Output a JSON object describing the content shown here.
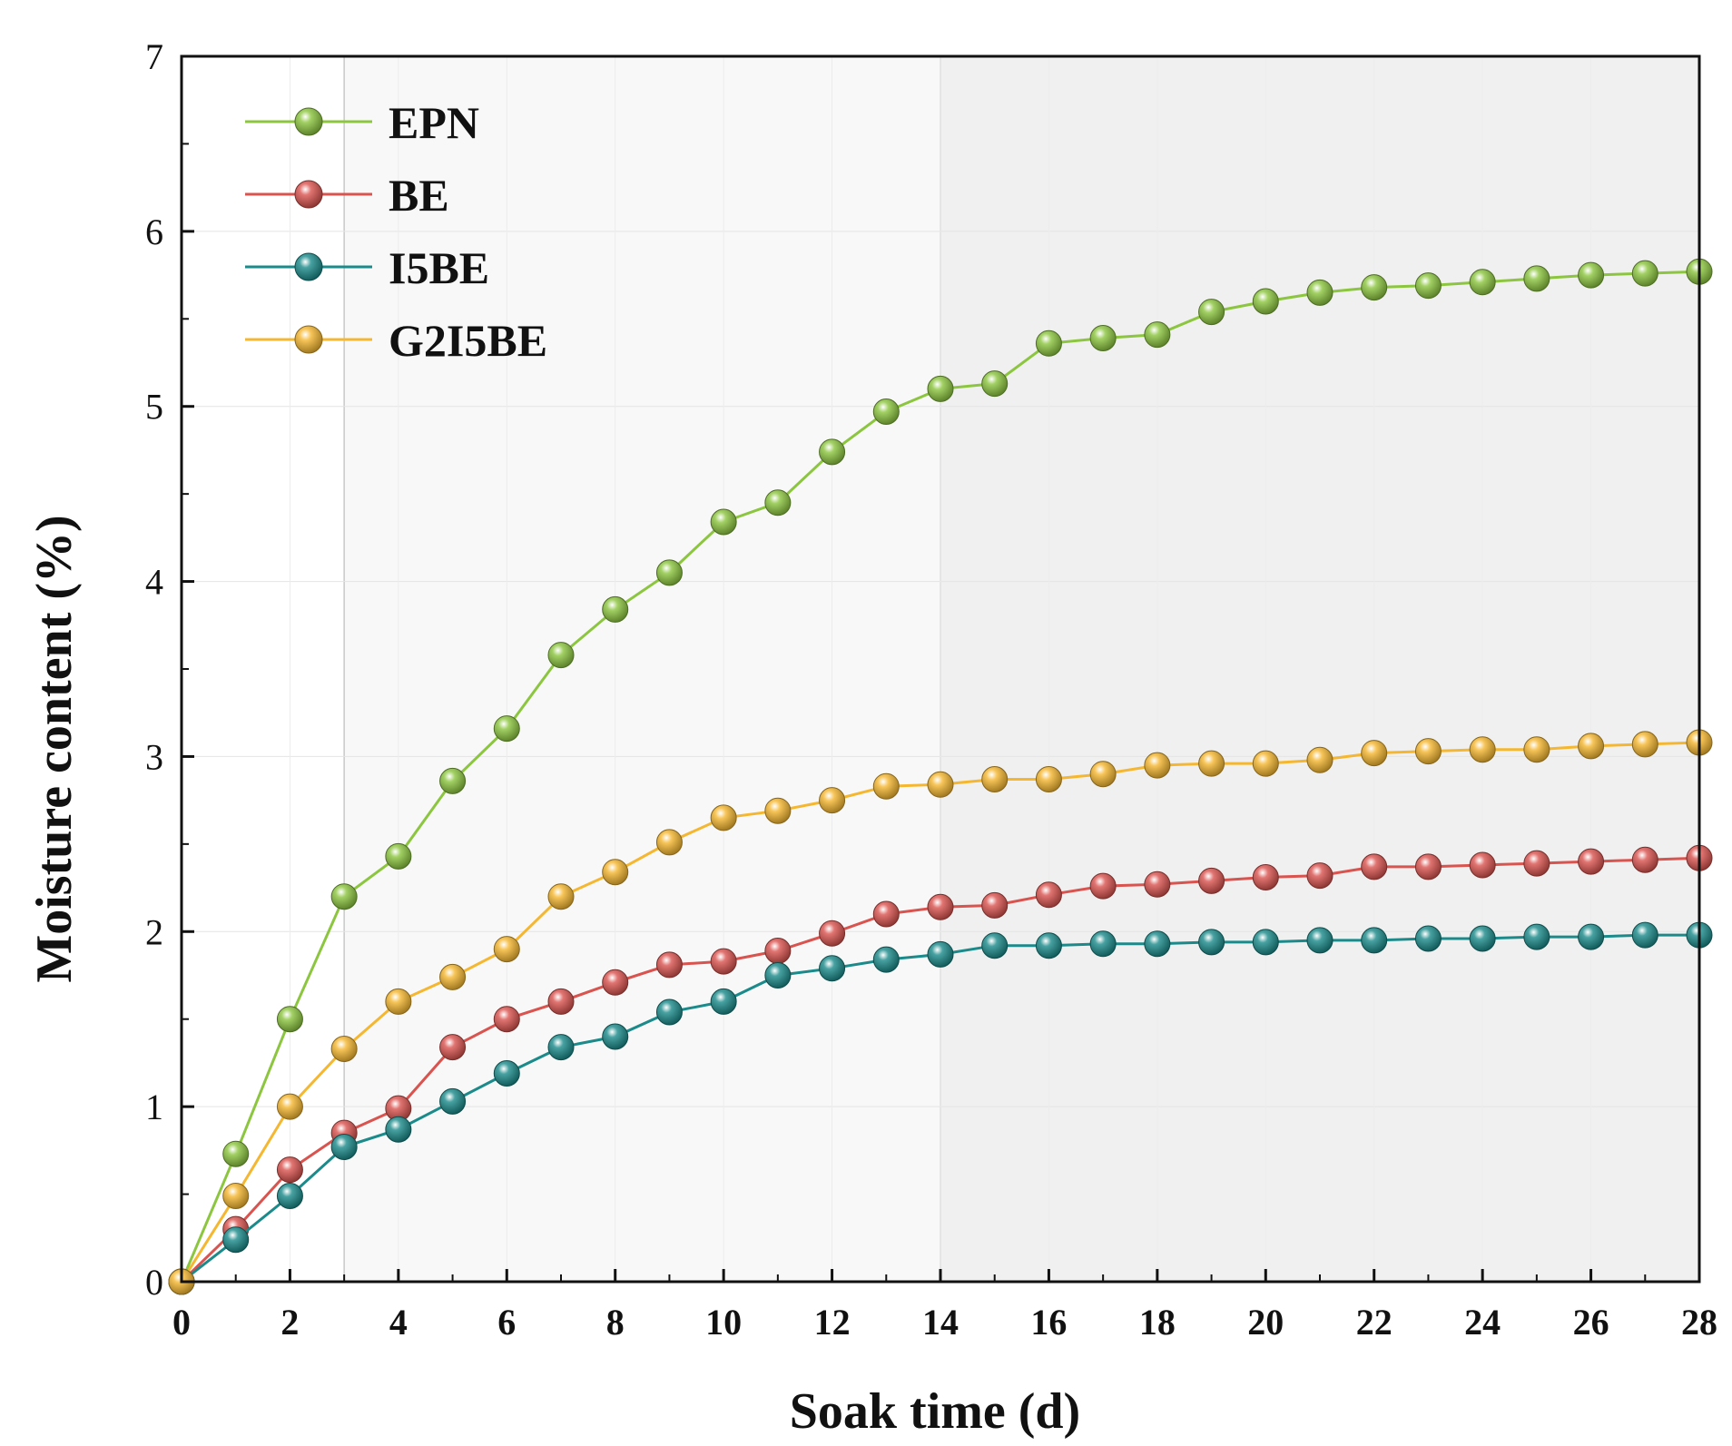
{
  "chart_data": {
    "type": "line",
    "title": "",
    "xlabel": "Soak time (d)",
    "ylabel": "Moisture content (%)",
    "xlim": [
      0,
      28
    ],
    "ylim": [
      0,
      7
    ],
    "xticks": [
      0,
      2,
      4,
      6,
      8,
      10,
      12,
      14,
      16,
      18,
      20,
      22,
      24,
      26,
      28
    ],
    "yticks": [
      0,
      1,
      2,
      3,
      4,
      5,
      6,
      7
    ],
    "shaded_regions": [
      {
        "from": 0,
        "to": 3,
        "color": "#ffffff"
      },
      {
        "from": 3,
        "to": 14,
        "color": "#f8f8f8"
      },
      {
        "from": 14,
        "to": 28,
        "color": "#f0f0f0"
      }
    ],
    "legend_position": "top-left",
    "x": [
      0,
      1,
      2,
      3,
      4,
      5,
      6,
      7,
      8,
      9,
      10,
      11,
      12,
      13,
      14,
      15,
      16,
      17,
      18,
      19,
      20,
      21,
      22,
      23,
      24,
      25,
      26,
      27,
      28
    ],
    "series": [
      {
        "name": "EPN",
        "color": "#8cc63f",
        "values": [
          0,
          0.73,
          1.5,
          2.2,
          2.43,
          2.86,
          3.16,
          3.58,
          3.84,
          4.05,
          4.34,
          4.45,
          4.74,
          4.97,
          5.1,
          5.13,
          5.36,
          5.39,
          5.41,
          5.54,
          5.6,
          5.65,
          5.68,
          5.69,
          5.71,
          5.73,
          5.75,
          5.76,
          5.77
        ]
      },
      {
        "name": "BE",
        "color": "#d9534f",
        "values": [
          0,
          0.3,
          0.64,
          0.85,
          0.99,
          1.34,
          1.5,
          1.6,
          1.71,
          1.81,
          1.83,
          1.89,
          1.99,
          2.1,
          2.14,
          2.15,
          2.21,
          2.26,
          2.27,
          2.29,
          2.31,
          2.32,
          2.37,
          2.37,
          2.38,
          2.39,
          2.4,
          2.41,
          2.42
        ]
      },
      {
        "name": "I5BE",
        "color": "#1a8a8a",
        "values": [
          0,
          0.24,
          0.49,
          0.77,
          0.87,
          1.03,
          1.19,
          1.34,
          1.4,
          1.54,
          1.6,
          1.75,
          1.79,
          1.84,
          1.87,
          1.92,
          1.92,
          1.93,
          1.93,
          1.94,
          1.94,
          1.95,
          1.95,
          1.96,
          1.96,
          1.97,
          1.97,
          1.98,
          1.98
        ]
      },
      {
        "name": "G2I5BE",
        "color": "#f5b730",
        "values": [
          0,
          0.49,
          1.0,
          1.33,
          1.6,
          1.74,
          1.9,
          2.2,
          2.34,
          2.51,
          2.65,
          2.69,
          2.75,
          2.83,
          2.84,
          2.87,
          2.87,
          2.9,
          2.95,
          2.96,
          2.96,
          2.98,
          3.02,
          3.03,
          3.04,
          3.04,
          3.06,
          3.07,
          3.08
        ]
      }
    ]
  }
}
